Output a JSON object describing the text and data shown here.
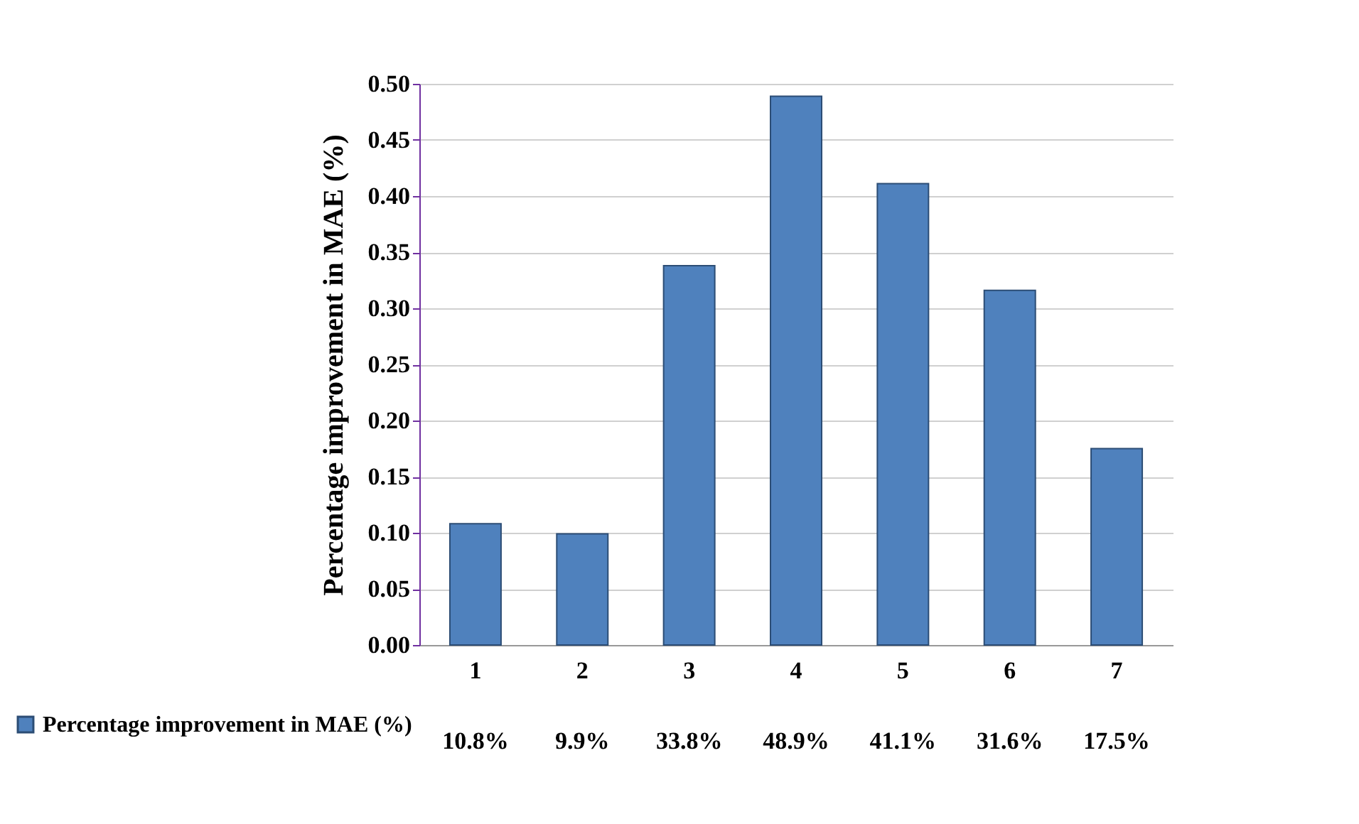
{
  "chart_data": {
    "type": "bar",
    "ylabel": "Percentage improvement in MAE (%)",
    "categories": [
      "1",
      "2",
      "3",
      "4",
      "5",
      "6",
      "7"
    ],
    "series": [
      {
        "name": "Percentage improvement in MAE  (%)",
        "color": "#4f81bd",
        "values": [
          0.108,
          0.099,
          0.338,
          0.489,
          0.411,
          0.316,
          0.175
        ],
        "value_labels": [
          "10.8%",
          "9.9%",
          "33.8%",
          "48.9%",
          "41.1%",
          "31.6%",
          "17.5%"
        ]
      }
    ],
    "ylim": [
      0,
      0.5
    ],
    "yticks": [
      {
        "value": 0,
        "label": "0.00"
      },
      0.05,
      {
        "value": 0.1,
        "label": "0.10"
      },
      0.15,
      {
        "value": 0.2,
        "label": "0.20"
      },
      0.25,
      {
        "value": 0.3,
        "label": "0.30"
      },
      0.35,
      {
        "value": 0.4,
        "label": "0.40"
      },
      0.45,
      {
        "value": 0.5,
        "label": "0.50"
      }
    ],
    "grid": "y",
    "legend": "bottom left"
  }
}
